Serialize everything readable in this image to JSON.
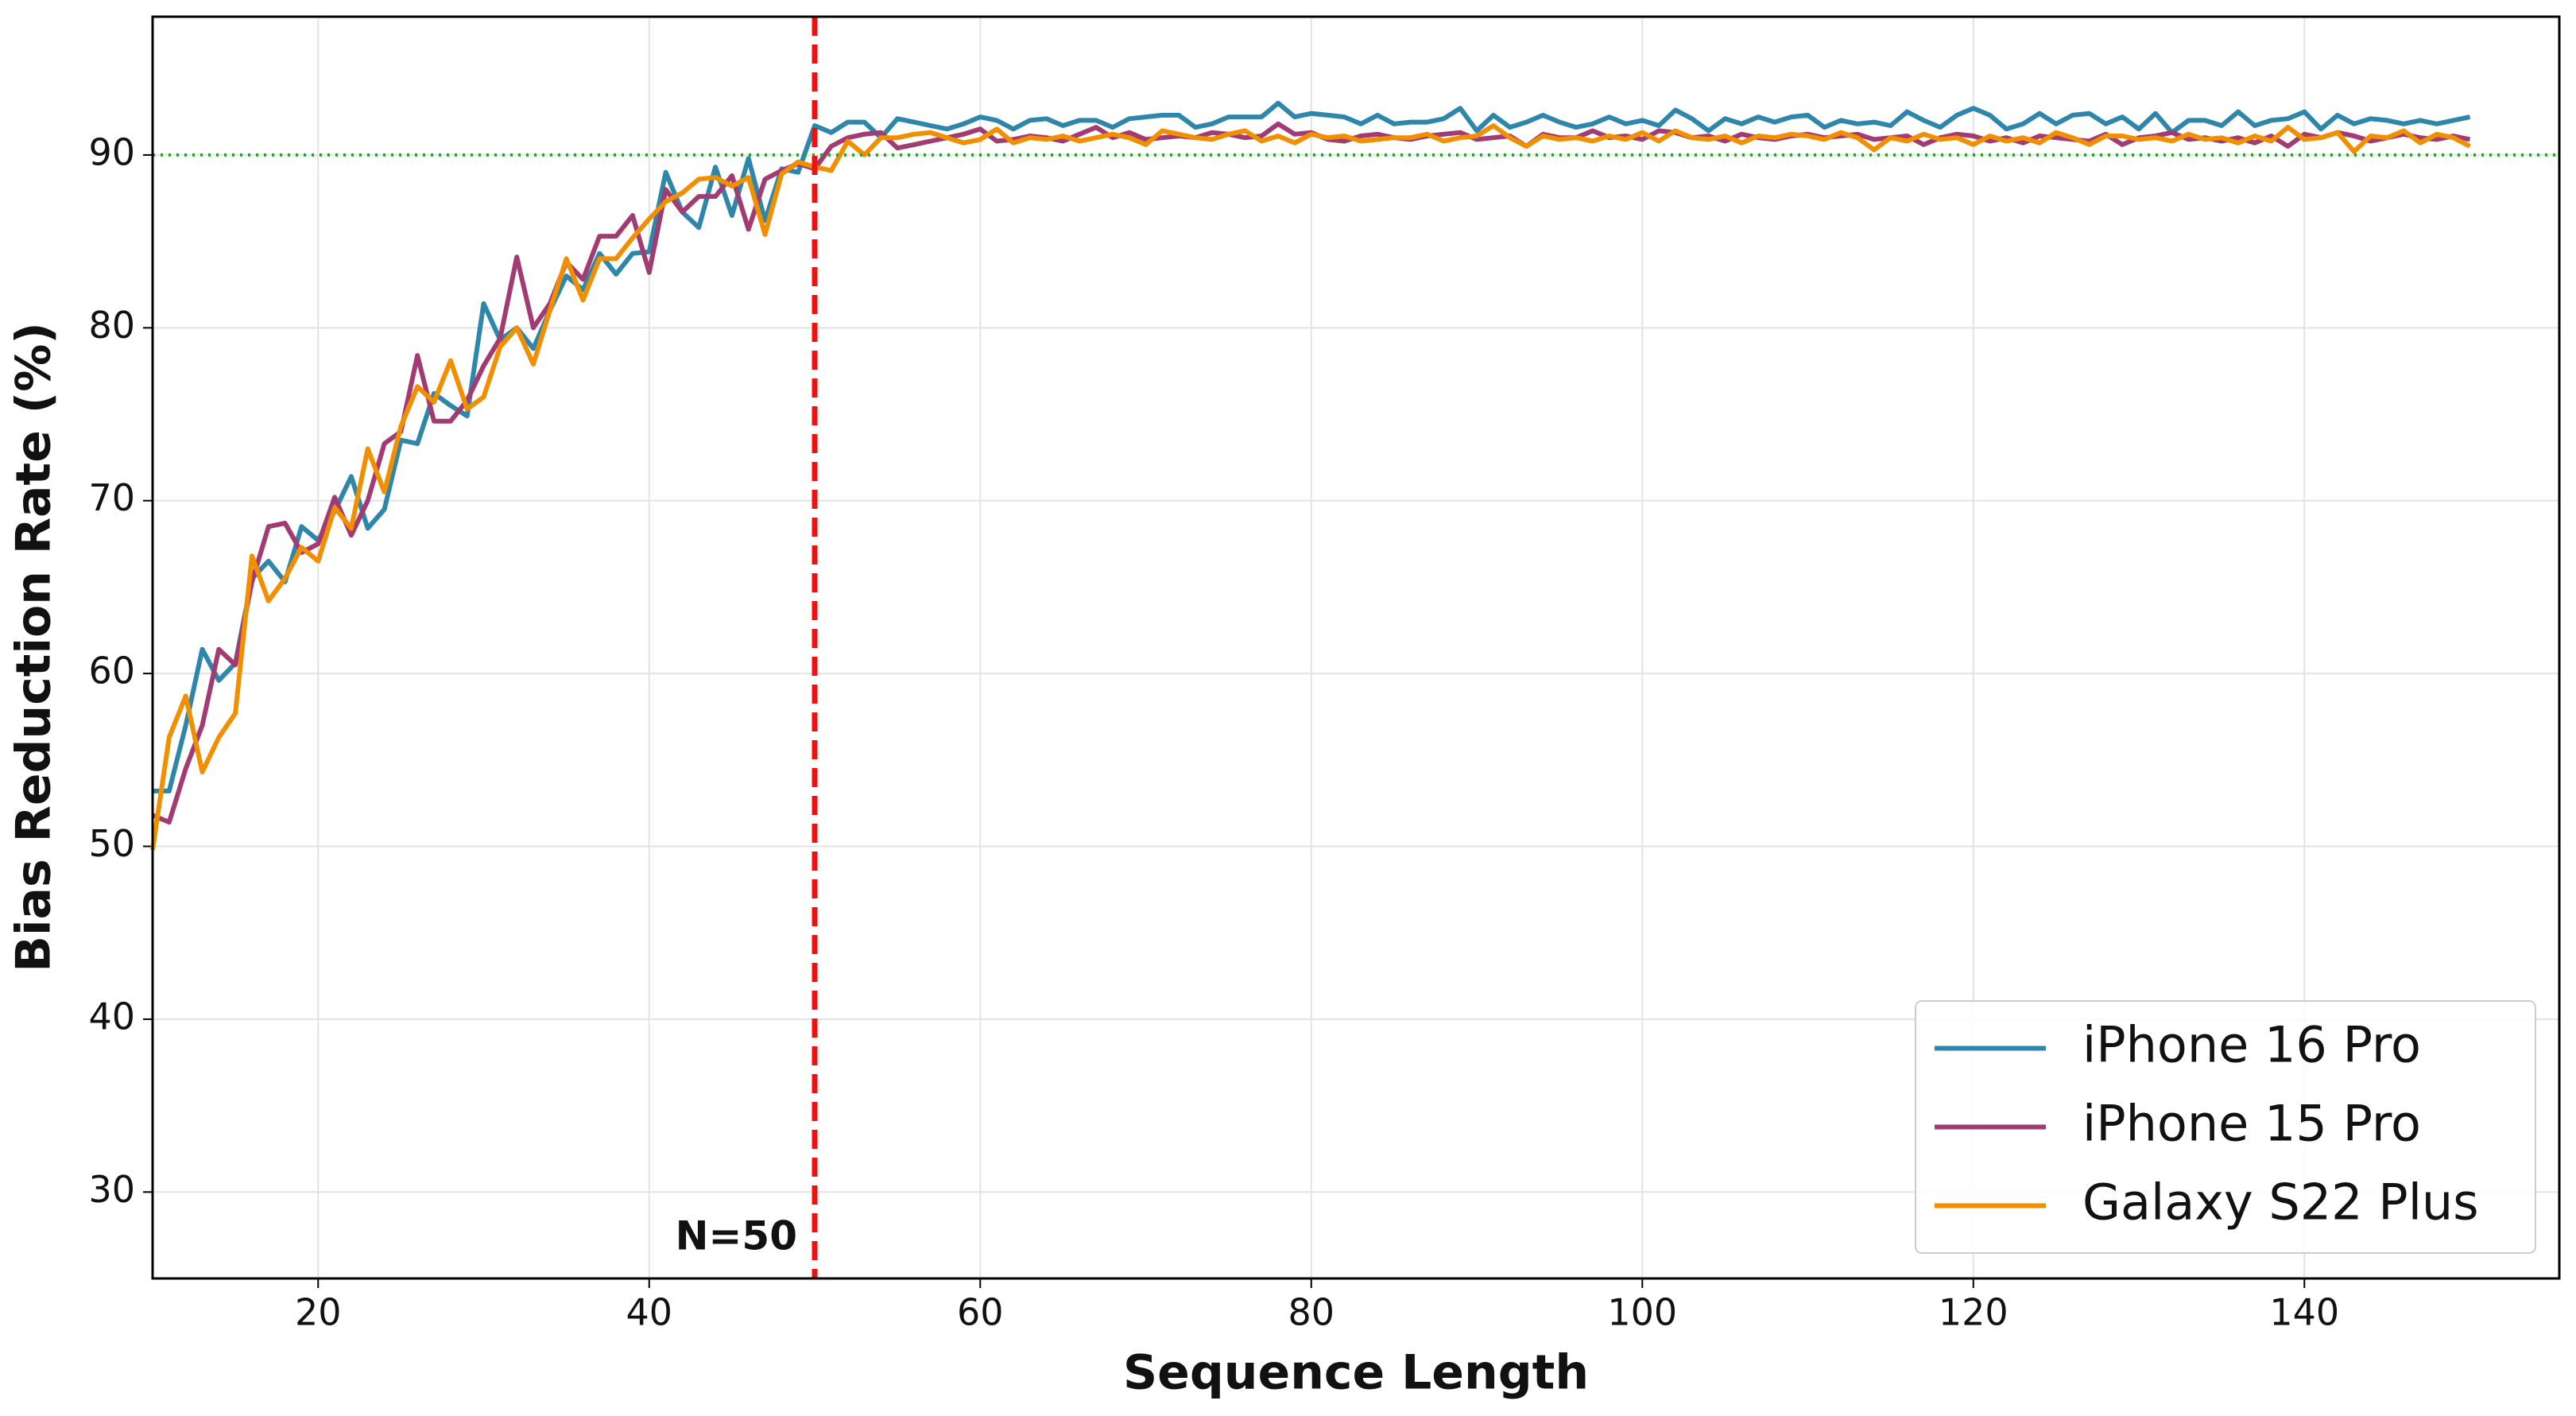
{
  "chart_data": {
    "type": "line",
    "x_label": "Sequence Length",
    "y_label": "Bias Reduction Rate (%)",
    "x": [
      10,
      11,
      12,
      13,
      14,
      15,
      16,
      17,
      18,
      19,
      20,
      21,
      22,
      23,
      24,
      25,
      26,
      27,
      28,
      29,
      30,
      31,
      32,
      33,
      34,
      35,
      36,
      37,
      38,
      39,
      40,
      41,
      42,
      43,
      44,
      45,
      46,
      47,
      48,
      49,
      50,
      51,
      52,
      53,
      54,
      55,
      56,
      57,
      58,
      59,
      60,
      61,
      62,
      63,
      64,
      65,
      66,
      67,
      68,
      69,
      70,
      71,
      72,
      73,
      74,
      75,
      76,
      77,
      78,
      79,
      80,
      81,
      82,
      83,
      84,
      85,
      86,
      87,
      88,
      89,
      90,
      91,
      92,
      93,
      94,
      95,
      96,
      97,
      98,
      99,
      100,
      101,
      102,
      103,
      104,
      105,
      106,
      107,
      108,
      109,
      110,
      111,
      112,
      113,
      114,
      115,
      116,
      117,
      118,
      119,
      120,
      121,
      122,
      123,
      124,
      125,
      126,
      127,
      128,
      129,
      130,
      131,
      132,
      133,
      134,
      135,
      136,
      137,
      138,
      139,
      140,
      141,
      142,
      143,
      144,
      145,
      146,
      147,
      148,
      149,
      150
    ],
    "series": [
      {
        "name": "iPhone 16 Pro",
        "color": "#2e86ab",
        "values": [
          53.2,
          53.2,
          57,
          61.4,
          59.6,
          60.6,
          65.5,
          66.5,
          65.3,
          68.5,
          67.7,
          69.4,
          71.4,
          68.4,
          69.5,
          73.5,
          73.3,
          76.2,
          75.5,
          74.9,
          81.4,
          79.3,
          80,
          78.8,
          81,
          83,
          82.2,
          84.3,
          83.1,
          84.3,
          84.4,
          89,
          86.7,
          85.8,
          89.3,
          86.5,
          89.8,
          86.2,
          89.2,
          89,
          91.7,
          91.3,
          91.9,
          91.9,
          91,
          92.1,
          91.9,
          91.7,
          91.5,
          91.8,
          92.2,
          92.0,
          91.5,
          92.0,
          92.1,
          91.7,
          92.0,
          92.0,
          91.6,
          92.1,
          92.2,
          92.3,
          92.3,
          91.6,
          91.8,
          92.2,
          92.2,
          92.2,
          93.0,
          92.2,
          92.4,
          92.3,
          92.2,
          91.8,
          92.3,
          91.8,
          91.9,
          91.9,
          92.1,
          92.7,
          91.4,
          92.3,
          91.6,
          91.9,
          92.3,
          91.9,
          91.6,
          91.8,
          92.2,
          91.8,
          92.0,
          91.7,
          92.6,
          92.1,
          91.4,
          92.1,
          91.8,
          92.2,
          91.9,
          92.2,
          92.3,
          91.6,
          92.0,
          91.8,
          91.9,
          91.7,
          92.5,
          92.0,
          91.6,
          92.3,
          92.7,
          92.3,
          91.5,
          91.8,
          92.4,
          91.8,
          92.3,
          92.4,
          91.8,
          92.2,
          91.5,
          92.4,
          91.3,
          92.0,
          92.0,
          91.7,
          92.5,
          91.7,
          92.0,
          92.1,
          92.5,
          91.5,
          92.3,
          91.8,
          92.1,
          92.0,
          91.8,
          92.0,
          91.8,
          92.0,
          92.2
        ]
      },
      {
        "name": "iPhone 15 Pro",
        "color": "#a23b72",
        "values": [
          51.8,
          51.4,
          54.5,
          57,
          61.4,
          60.5,
          65.3,
          68.5,
          68.7,
          67,
          67.5,
          70.2,
          68,
          70,
          73.3,
          74,
          78.4,
          74.6,
          74.6,
          75.8,
          77.8,
          79.4,
          84.1,
          80,
          81.4,
          83.8,
          82.8,
          85.3,
          85.3,
          86.5,
          83.2,
          88,
          86.7,
          87.6,
          87.6,
          88.8,
          85.7,
          88.6,
          89.1,
          89.5,
          89.2,
          90.5,
          91,
          91.2,
          91.3,
          90.4,
          90.6,
          90.8,
          91.0,
          91.2,
          91.5,
          90.8,
          90.9,
          91.1,
          91.0,
          90.8,
          91.2,
          91.6,
          91.0,
          91.3,
          90.9,
          91.0,
          91.1,
          91.0,
          91.3,
          91.2,
          91.0,
          91.1,
          91.8,
          91.2,
          91.3,
          90.9,
          90.8,
          91.1,
          91.2,
          91.0,
          90.9,
          91.1,
          91.2,
          91.3,
          90.9,
          91.0,
          91.1,
          90.5,
          91.2,
          91.0,
          91.0,
          91.4,
          91.0,
          91.1,
          90.9,
          91.4,
          91.3,
          91.0,
          91.1,
          90.8,
          91.2,
          91.0,
          90.9,
          91.1,
          91.2,
          91.0,
          91.1,
          91.2,
          90.9,
          91.0,
          91.1,
          90.6,
          91.0,
          91.2,
          91.1,
          90.8,
          91.0,
          90.7,
          91.1,
          91.0,
          90.9,
          90.8,
          91.2,
          90.6,
          91.0,
          91.1,
          91.3,
          90.9,
          91.0,
          90.8,
          91.0,
          90.7,
          91.1,
          90.5,
          91.2,
          91.0,
          91.3,
          91.1,
          90.8,
          91.0,
          91.2,
          91.0,
          90.9,
          91.1,
          90.9
        ]
      },
      {
        "name": "Galaxy S22 Plus",
        "color": "#f18f01",
        "values": [
          49.8,
          56.3,
          58.7,
          54.3,
          56.3,
          57.7,
          66.8,
          64.2,
          65.5,
          67.3,
          66.5,
          69.6,
          68.4,
          73,
          70.5,
          74.3,
          76.6,
          75.7,
          78.1,
          75.3,
          76,
          78.9,
          80,
          77.9,
          81,
          84,
          81.6,
          84,
          84,
          85.2,
          86.3,
          87.3,
          87.8,
          88.6,
          88.7,
          88.2,
          88.7,
          85.4,
          88.9,
          89.6,
          89.3,
          89.1,
          90.8,
          90,
          91,
          91,
          91.2,
          91.3,
          91.0,
          90.7,
          90.9,
          91.5,
          90.7,
          91.0,
          90.9,
          91.1,
          90.8,
          91.0,
          91.2,
          91.0,
          90.6,
          91.4,
          91.2,
          91.0,
          90.9,
          91.2,
          91.4,
          90.8,
          91.1,
          90.7,
          91.2,
          91.0,
          91.1,
          90.8,
          90.9,
          91.0,
          91.0,
          91.2,
          90.8,
          91.0,
          91.1,
          91.7,
          91.0,
          90.5,
          91.1,
          90.9,
          91.0,
          90.8,
          91.1,
          90.9,
          91.3,
          90.8,
          91.4,
          91.0,
          90.9,
          91.1,
          90.7,
          91.1,
          91.0,
          91.2,
          91.1,
          90.9,
          91.3,
          91.0,
          90.3,
          91.0,
          90.8,
          91.2,
          90.9,
          91.0,
          90.6,
          91.1,
          90.8,
          91.0,
          90.7,
          91.3,
          91.0,
          90.6,
          91.1,
          91.1,
          90.9,
          91.0,
          90.8,
          91.2,
          90.9,
          91.0,
          90.7,
          91.1,
          90.8,
          91.6,
          90.9,
          91.0,
          91.3,
          90.2,
          91.1,
          91.0,
          91.4,
          90.7,
          91.2,
          91.0,
          90.5
        ]
      }
    ],
    "xlim": [
      10,
      155.4
    ],
    "ylim": [
      25,
      98
    ],
    "xticks": [
      20,
      40,
      60,
      80,
      100,
      120,
      140
    ],
    "yticks": [
      30,
      40,
      50,
      60,
      70,
      80,
      90
    ],
    "grid": true,
    "legend": "lower right",
    "vline": {
      "x": 50,
      "label": "N=50",
      "color": "#ee1111"
    },
    "hline": {
      "y": 90,
      "color": "#2ca02c"
    }
  }
}
